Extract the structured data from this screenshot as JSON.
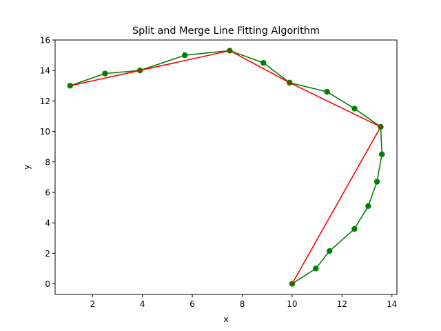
{
  "chart_data": {
    "type": "line",
    "title": "Split and Merge Line Fitting Algorithm",
    "xlabel": "x",
    "ylabel": "y",
    "xlim": [
      0.5,
      14.2
    ],
    "ylim": [
      -0.7,
      16
    ],
    "xticks": [
      2,
      4,
      6,
      8,
      10,
      12,
      14
    ],
    "yticks": [
      0,
      2,
      4,
      6,
      8,
      10,
      12,
      14,
      16
    ],
    "grid": false,
    "legend": "none",
    "series": [
      {
        "color": "#008000",
        "marker": "circle",
        "points": [
          [
            1.1,
            13.0
          ],
          [
            2.5,
            13.8
          ],
          [
            3.9,
            14.0
          ],
          [
            5.7,
            15.0
          ],
          [
            7.5,
            15.3
          ],
          [
            8.85,
            14.5
          ],
          [
            9.9,
            13.2
          ],
          [
            11.4,
            12.6
          ],
          [
            12.5,
            11.5
          ],
          [
            13.55,
            10.3
          ],
          [
            13.6,
            8.5
          ],
          [
            13.4,
            6.7
          ],
          [
            13.05,
            5.1
          ],
          [
            12.5,
            3.6
          ],
          [
            11.5,
            2.15
          ],
          [
            10.95,
            1.0
          ],
          [
            10.0,
            0.0
          ]
        ]
      },
      {
        "color": "#ff0000",
        "marker": "none",
        "points": [
          [
            1.1,
            13.0
          ],
          [
            3.9,
            14.0
          ],
          [
            7.5,
            15.3
          ],
          [
            9.9,
            13.2
          ],
          [
            13.55,
            10.3
          ],
          [
            10.0,
            0.0
          ]
        ]
      }
    ]
  }
}
